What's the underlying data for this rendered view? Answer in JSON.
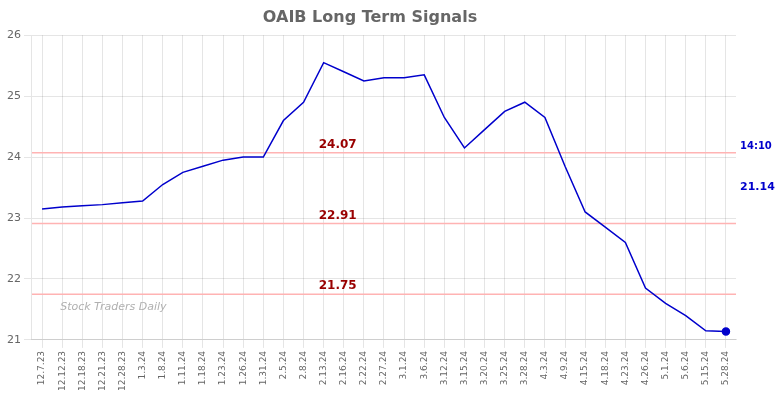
{
  "chart_data": {
    "type": "line",
    "title": "OAIB Long Term Signals",
    "categories": [
      "12.7.23",
      "12.12.23",
      "12.18.23",
      "12.21.23",
      "12.28.23",
      "1.3.24",
      "1.8.24",
      "1.11.24",
      "1.18.24",
      "1.23.24",
      "1.26.24",
      "1.31.24",
      "2.5.24",
      "2.8.24",
      "2.13.24",
      "2.16.24",
      "2.22.24",
      "2.27.24",
      "3.1.24",
      "3.6.24",
      "3.12.24",
      "3.15.24",
      "3.20.24",
      "3.25.24",
      "3.28.24",
      "4.3.24",
      "4.9.24",
      "4.15.24",
      "4.18.24",
      "4.23.24",
      "4.26.24",
      "5.1.24",
      "5.6.24",
      "5.15.24",
      "5.28.24"
    ],
    "values": [
      23.15,
      23.18,
      23.2,
      23.22,
      23.25,
      23.28,
      23.55,
      23.75,
      23.85,
      23.95,
      24.0,
      24.0,
      24.6,
      24.9,
      25.55,
      25.4,
      25.25,
      25.3,
      25.3,
      25.35,
      24.65,
      24.15,
      24.45,
      24.75,
      24.9,
      24.65,
      23.85,
      23.1,
      22.85,
      22.6,
      21.85,
      21.6,
      21.4,
      21.15,
      21.14
    ],
    "color": "#0000cc",
    "hlines": [
      {
        "value": 24.07,
        "color": "#ffb3b3"
      },
      {
        "value": 22.91,
        "color": "#ffb3b3"
      },
      {
        "value": 21.75,
        "color": "#ffb3b3"
      }
    ],
    "annotations": [
      {
        "text": "Stock Traders Daily"
      },
      {
        "text": "14:10"
      },
      {
        "text": "21.14"
      }
    ],
    "ylim": [
      21,
      26
    ],
    "yticks": [
      21,
      22,
      23,
      24,
      25,
      26
    ],
    "grid": true
  }
}
